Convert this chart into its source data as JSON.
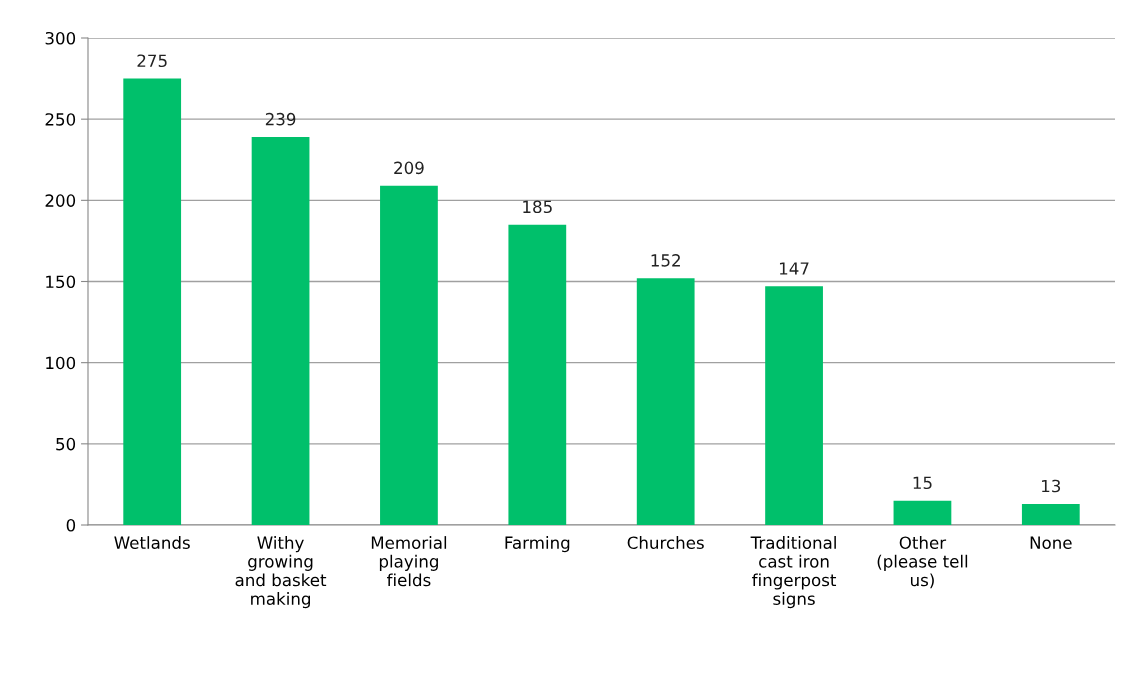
{
  "chart_data": {
    "type": "bar",
    "categories": [
      "Wetlands",
      "Withy\ngrowing\nand basket\nmaking",
      "Memorial\nplaying\nfields",
      "Farming",
      "Churches",
      "Traditional\ncast iron\nfingerpost\nsigns",
      "Other\n(please tell\nus)",
      "None"
    ],
    "values": [
      275,
      239,
      209,
      185,
      152,
      147,
      15,
      13
    ],
    "color": "#00c06b",
    "ylim": [
      0,
      300
    ],
    "yticks": [
      0,
      50,
      100,
      150,
      200,
      250,
      300
    ],
    "grid": "y",
    "data_labels": true
  }
}
